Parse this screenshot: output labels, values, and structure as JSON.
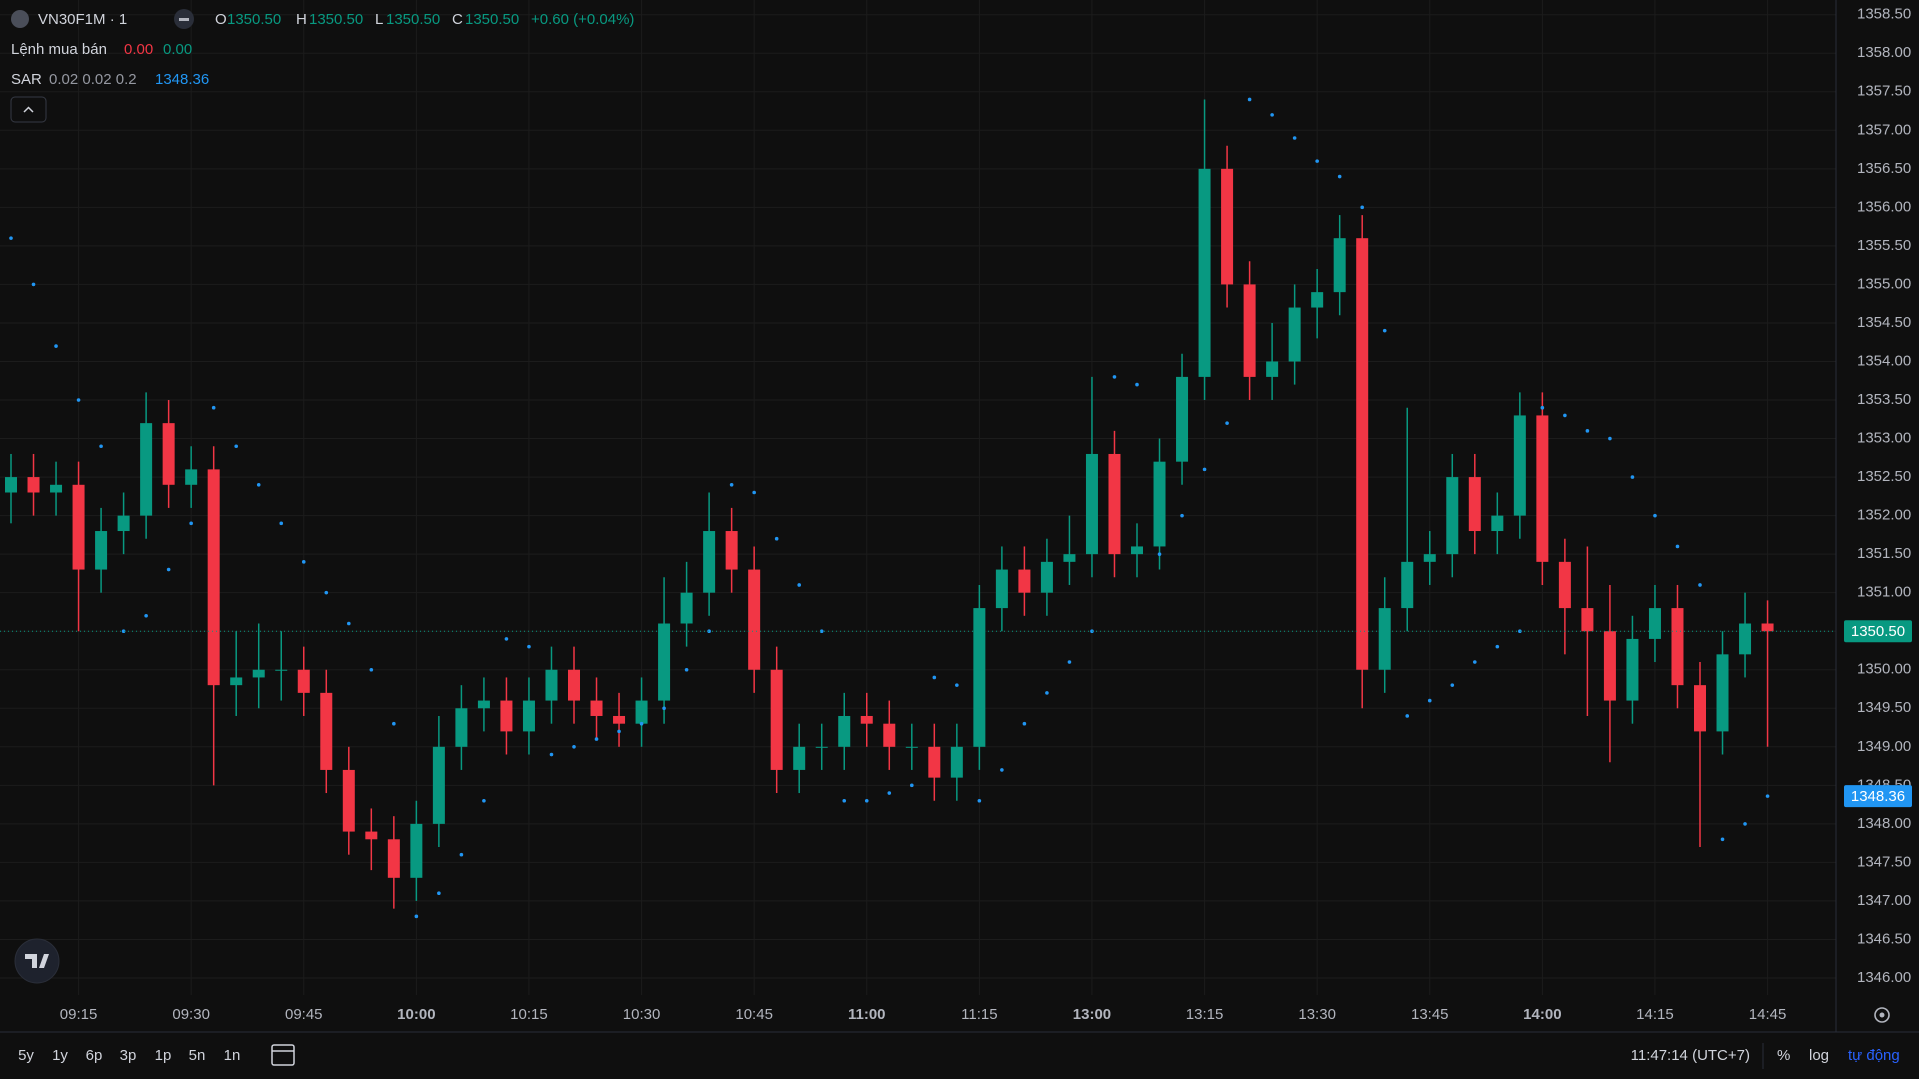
{
  "header": {
    "symbol": "VN30F1M · 1",
    "legend": {
      "o": "O",
      "open": "1350.50",
      "h": "H",
      "high": "1350.50",
      "l": "L",
      "low": "1350.50",
      "c": "C",
      "close": "1350.50",
      "change": "+0.60 (+0.04%)"
    },
    "orders": {
      "name": "Lệnh mua bán",
      "sell": "0.00",
      "buy": "0.00"
    },
    "sar": {
      "name": "SAR",
      "params": "0.02 0.02 0.2",
      "value": "1348.36"
    }
  },
  "chart_data": {
    "type": "candlestick",
    "up_color": "#089981",
    "down_color": "#f23645",
    "sar_color": "#2196f3",
    "grid": true,
    "categories": [
      null,
      null,
      null,
      "09:15",
      null,
      null,
      null,
      null,
      "09:30",
      null,
      null,
      null,
      null,
      "09:45",
      null,
      null,
      null,
      null,
      "10:00",
      null,
      null,
      null,
      null,
      "10:15",
      null,
      null,
      null,
      null,
      "10:30",
      null,
      null,
      null,
      null,
      "10:45",
      null,
      null,
      null,
      null,
      "11:00",
      null,
      null,
      null,
      null,
      "11:15",
      null,
      null,
      null,
      null,
      "13:00",
      null,
      null,
      null,
      null,
      "13:15",
      null,
      null,
      null,
      null,
      "13:30",
      null,
      null,
      null,
      null,
      "13:45",
      null,
      null,
      null,
      null,
      "14:00",
      null,
      null,
      null,
      null,
      "14:15",
      null,
      null,
      null,
      null,
      "14:45"
    ],
    "open": [
      1352.3,
      1352.5,
      1352.3,
      1352.4,
      1351.3,
      1351.8,
      1352.0,
      1353.2,
      1352.4,
      1352.6,
      1349.8,
      1349.9,
      1350.0,
      1350.0,
      1349.7,
      1348.7,
      1347.9,
      1347.8,
      1347.3,
      1348.0,
      1349.0,
      1349.5,
      1349.6,
      1349.2,
      1349.6,
      1350.0,
      1349.6,
      1349.4,
      1349.3,
      1349.6,
      1350.6,
      1351.0,
      1351.8,
      1351.3,
      1350.0,
      1348.7,
      1349.0,
      1349.0,
      1349.4,
      1349.3,
      1349.0,
      1349.0,
      1348.6,
      1349.0,
      1350.8,
      1351.3,
      1351.0,
      1351.4,
      1351.5,
      1352.8,
      1351.5,
      1351.6,
      1352.7,
      1353.8,
      1356.5,
      1355.0,
      1353.8,
      1354.0,
      1354.7,
      1354.9,
      1355.6,
      1350.0,
      1350.8,
      1351.4,
      1351.5,
      1352.5,
      1351.8,
      1352.0,
      1353.3,
      1351.4,
      1350.8,
      1350.5,
      1349.6,
      1350.4,
      1350.8,
      1349.8,
      1349.2,
      1350.2,
      1350.6
    ],
    "high": [
      1352.8,
      1352.8,
      1352.7,
      1352.7,
      1352.1,
      1352.3,
      1353.6,
      1353.5,
      1352.9,
      1352.9,
      1350.5,
      1350.6,
      1350.5,
      1350.3,
      1350.0,
      1349.0,
      1348.2,
      1348.1,
      1348.3,
      1349.4,
      1349.8,
      1349.9,
      1349.9,
      1349.9,
      1350.3,
      1350.3,
      1349.9,
      1349.7,
      1349.9,
      1351.2,
      1351.4,
      1352.3,
      1352.1,
      1351.6,
      1350.3,
      1349.3,
      1349.3,
      1349.7,
      1349.7,
      1349.6,
      1349.3,
      1349.3,
      1349.3,
      1351.1,
      1351.6,
      1351.6,
      1351.7,
      1352.0,
      1353.8,
      1353.1,
      1351.9,
      1353.0,
      1354.1,
      1357.4,
      1356.8,
      1355.3,
      1354.5,
      1355.0,
      1355.2,
      1355.9,
      1355.9,
      1351.2,
      1353.4,
      1351.8,
      1352.8,
      1352.8,
      1352.3,
      1353.6,
      1353.6,
      1351.7,
      1351.6,
      1351.1,
      1350.7,
      1351.1,
      1351.1,
      1350.1,
      1350.5,
      1351.0,
      1350.9
    ],
    "low": [
      1351.9,
      1352.0,
      1352.0,
      1350.5,
      1351.0,
      1351.5,
      1351.7,
      1352.1,
      1352.1,
      1348.5,
      1349.4,
      1349.5,
      1349.6,
      1349.4,
      1348.4,
      1347.6,
      1347.4,
      1346.9,
      1347.0,
      1347.7,
      1348.7,
      1349.2,
      1348.9,
      1348.9,
      1349.3,
      1349.3,
      1349.1,
      1349.0,
      1349.0,
      1349.3,
      1350.3,
      1350.7,
      1351.0,
      1349.7,
      1348.4,
      1348.4,
      1348.7,
      1348.7,
      1349.0,
      1348.7,
      1348.7,
      1348.3,
      1348.3,
      1348.7,
      1350.5,
      1350.7,
      1350.7,
      1351.1,
      1351.2,
      1351.2,
      1351.2,
      1351.3,
      1352.4,
      1353.5,
      1354.7,
      1353.5,
      1353.5,
      1353.7,
      1354.3,
      1354.6,
      1349.5,
      1349.7,
      1350.5,
      1351.1,
      1351.2,
      1351.5,
      1351.5,
      1351.7,
      1351.1,
      1350.2,
      1349.4,
      1348.8,
      1349.3,
      1350.1,
      1349.5,
      1347.7,
      1348.9,
      1349.9,
      1349.0
    ],
    "close": [
      1352.5,
      1352.3,
      1352.4,
      1351.3,
      1351.8,
      1352.0,
      1353.2,
      1352.4,
      1352.6,
      1349.8,
      1349.9,
      1350.0,
      1350.0,
      1349.7,
      1348.7,
      1347.9,
      1347.8,
      1347.3,
      1348.0,
      1349.0,
      1349.5,
      1349.6,
      1349.2,
      1349.6,
      1350.0,
      1349.6,
      1349.4,
      1349.3,
      1349.6,
      1350.6,
      1351.0,
      1351.8,
      1351.3,
      1350.0,
      1348.7,
      1349.0,
      1349.0,
      1349.4,
      1349.3,
      1349.0,
      1349.0,
      1348.6,
      1349.0,
      1350.8,
      1351.3,
      1351.0,
      1351.4,
      1351.5,
      1352.8,
      1351.5,
      1351.6,
      1352.7,
      1353.8,
      1356.5,
      1355.0,
      1353.8,
      1354.0,
      1354.7,
      1354.9,
      1355.6,
      1350.0,
      1350.8,
      1351.4,
      1351.5,
      1352.5,
      1351.8,
      1352.0,
      1353.3,
      1351.4,
      1350.8,
      1350.5,
      1349.6,
      1350.4,
      1350.8,
      1349.8,
      1349.2,
      1350.2,
      1350.6,
      1350.5
    ],
    "sar": [
      1355.6,
      1355.0,
      1354.2,
      1353.5,
      1352.9,
      1350.5,
      1350.7,
      1351.3,
      1351.9,
      1353.4,
      1352.9,
      1352.4,
      1351.9,
      1351.4,
      1351.0,
      1350.6,
      1350.0,
      1349.3,
      1346.8,
      1347.1,
      1347.6,
      1348.3,
      1350.4,
      1350.3,
      1348.9,
      1349.0,
      1349.1,
      1349.2,
      1349.3,
      1349.5,
      1350.0,
      1350.5,
      1352.4,
      1352.3,
      1351.7,
      1351.1,
      1350.5,
      1348.3,
      1348.3,
      1348.4,
      1348.5,
      1349.9,
      1349.8,
      1348.3,
      1348.7,
      1349.3,
      1349.7,
      1350.1,
      1350.5,
      1353.8,
      1353.7,
      1351.5,
      1352.0,
      1352.6,
      1353.2,
      1357.4,
      1357.2,
      1356.9,
      1356.6,
      1356.4,
      1356.0,
      1354.4,
      1349.4,
      1349.6,
      1349.8,
      1350.1,
      1350.3,
      1350.5,
      1353.4,
      1353.3,
      1353.1,
      1353.0,
      1352.5,
      1352.0,
      1351.6,
      1351.1,
      1347.8,
      1348.0,
      1348.36
    ],
    "ylim": [
      1346.0,
      1358.5
    ],
    "yticks": [
      {
        "value": 1346.0,
        "label": "1346.00"
      },
      {
        "value": 1346.5,
        "label": "1346.50"
      },
      {
        "value": 1347.0,
        "label": "1347.00"
      },
      {
        "value": 1347.5,
        "label": "1347.50"
      },
      {
        "value": 1348.0,
        "label": "1348.00"
      },
      {
        "value": 1348.5,
        "label": "1348.50"
      },
      {
        "value": 1349.0,
        "label": "1349.00"
      },
      {
        "value": 1349.5,
        "label": "1349.50"
      },
      {
        "value": 1350.0,
        "label": "1350.00"
      },
      {
        "value": 1350.5,
        "label": "1350.50"
      },
      {
        "value": 1351.0,
        "label": "1351.00"
      },
      {
        "value": 1351.5,
        "label": "1351.50"
      },
      {
        "value": 1352.0,
        "label": "1352.00"
      },
      {
        "value": 1352.5,
        "label": "1352.50"
      },
      {
        "value": 1353.0,
        "label": "1353.00"
      },
      {
        "value": 1353.5,
        "label": "1353.50"
      },
      {
        "value": 1354.0,
        "label": "1354.00"
      },
      {
        "value": 1354.5,
        "label": "1354.50"
      },
      {
        "value": 1355.0,
        "label": "1355.00"
      },
      {
        "value": 1355.5,
        "label": "1355.50"
      },
      {
        "value": 1356.0,
        "label": "1356.00"
      },
      {
        "value": 1356.5,
        "label": "1356.50"
      },
      {
        "value": 1357.0,
        "label": "1357.00"
      },
      {
        "value": 1357.5,
        "label": "1357.50"
      },
      {
        "value": 1358.0,
        "label": "1358.00"
      },
      {
        "value": 1358.5,
        "label": "1358.50"
      }
    ]
  },
  "toolbar": {
    "ranges": [
      "5y",
      "1y",
      "6p",
      "3p",
      "1p",
      "5n",
      "1n"
    ],
    "clock": "11:47:14 (UTC+7)",
    "percent": "%",
    "log": "log",
    "auto": "tự động"
  }
}
